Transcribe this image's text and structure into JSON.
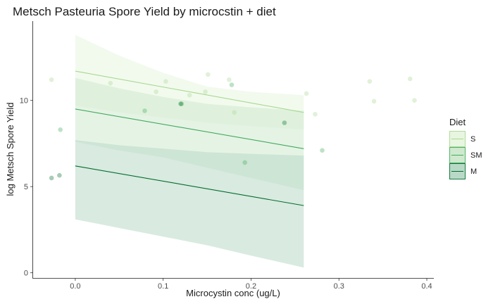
{
  "chart_data": {
    "type": "scatter",
    "title": "Metsch Pasteuria Spore Yield by microcstin + diet",
    "xlabel": "Microcystin conc (ug/L)",
    "ylabel": "log Metsch Spore Yield",
    "xlim": [
      -0.048,
      0.408
    ],
    "ylim": [
      -0.3,
      14.6
    ],
    "x_ticks": [
      0.0,
      0.1,
      0.2,
      0.3,
      0.4
    ],
    "x_tick_labels": [
      "0.0",
      "0.1",
      "0.2",
      "0.3",
      "0.4"
    ],
    "y_ticks": [
      0,
      5,
      10
    ],
    "y_tick_labels": [
      "0",
      "5",
      "10"
    ],
    "grid": false,
    "legend": {
      "title": "Diet",
      "position": "right"
    },
    "series": [
      {
        "name": "S",
        "color": "#a8d890",
        "ribbon_fill": "#e8f5e0",
        "fit": {
          "x": [
            0.0,
            0.26
          ],
          "y": [
            11.7,
            9.3
          ]
        },
        "ribbon": {
          "x": [
            0.0,
            0.05,
            0.1,
            0.15,
            0.2,
            0.26
          ],
          "lower": [
            9.7,
            9.3,
            9.0,
            8.7,
            8.5,
            8.3
          ],
          "upper": [
            13.8,
            12.6,
            11.6,
            10.8,
            10.5,
            10.3
          ]
        },
        "points": [
          {
            "x": -0.027,
            "y": 11.2
          },
          {
            "x": 0.04,
            "y": 11.0
          },
          {
            "x": 0.092,
            "y": 10.5
          },
          {
            "x": 0.103,
            "y": 11.1
          },
          {
            "x": 0.13,
            "y": 10.3
          },
          {
            "x": 0.148,
            "y": 10.5
          },
          {
            "x": 0.151,
            "y": 11.5
          },
          {
            "x": 0.175,
            "y": 11.2
          },
          {
            "x": 0.181,
            "y": 9.3
          },
          {
            "x": 0.263,
            "y": 10.4
          },
          {
            "x": 0.273,
            "y": 9.2
          },
          {
            "x": 0.335,
            "y": 11.1
          },
          {
            "x": 0.34,
            "y": 9.95
          },
          {
            "x": 0.381,
            "y": 11.25
          },
          {
            "x": 0.386,
            "y": 10.0
          }
        ]
      },
      {
        "name": "SM",
        "color": "#41ab5d",
        "ribbon_fill": "#cfe9cf",
        "fit": {
          "x": [
            0.0,
            0.26
          ],
          "y": [
            9.5,
            7.2
          ]
        },
        "ribbon": {
          "x": [
            0.0,
            0.05,
            0.1,
            0.15,
            0.2,
            0.26
          ],
          "lower": [
            7.6,
            7.1,
            6.7,
            6.1,
            5.5,
            4.8
          ],
          "upper": [
            11.3,
            10.7,
            10.2,
            9.8,
            9.6,
            9.4
          ]
        },
        "points": [
          {
            "x": -0.017,
            "y": 8.3
          },
          {
            "x": 0.079,
            "y": 9.4
          },
          {
            "x": 0.121,
            "y": 9.8
          },
          {
            "x": 0.178,
            "y": 10.9
          },
          {
            "x": 0.193,
            "y": 6.4
          },
          {
            "x": 0.281,
            "y": 7.1
          }
        ]
      },
      {
        "name": "M",
        "color": "#006d2c",
        "ribbon_fill": "#b9d9c7",
        "fit": {
          "x": [
            0.0,
            0.26
          ],
          "y": [
            6.2,
            3.9
          ]
        },
        "ribbon": {
          "x": [
            0.0,
            0.05,
            0.1,
            0.15,
            0.2,
            0.26
          ],
          "lower": [
            3.1,
            2.6,
            2.1,
            1.6,
            1.0,
            0.3
          ],
          "upper": [
            7.7,
            7.4,
            7.2,
            7.0,
            6.9,
            6.8
          ]
        },
        "points": [
          {
            "x": -0.027,
            "y": 5.5
          },
          {
            "x": -0.018,
            "y": 5.65
          },
          {
            "x": 0.12,
            "y": 9.8
          },
          {
            "x": 0.238,
            "y": 8.7
          }
        ]
      }
    ]
  }
}
